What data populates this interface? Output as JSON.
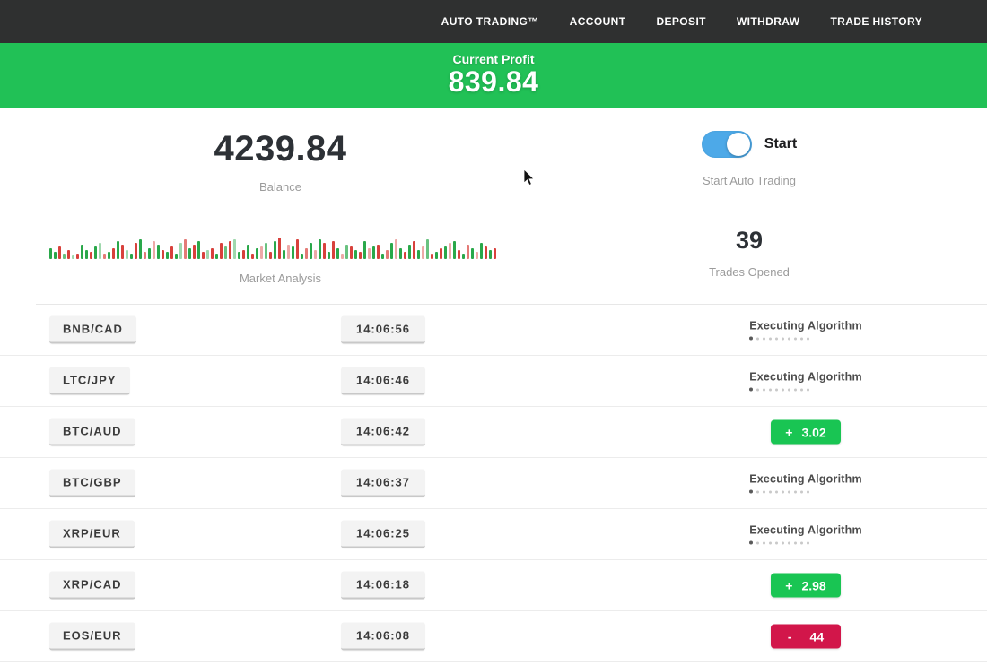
{
  "navbar": {
    "items": [
      "AUTO TRADING™",
      "ACCOUNT",
      "DEPOSIT",
      "WITHDRAW",
      "TRADE HISTORY"
    ]
  },
  "banner": {
    "label": "Current Profit",
    "value": "839.84"
  },
  "account": {
    "balance_value": "4239.84",
    "balance_label": "Balance",
    "toggle_label": "Start",
    "toggle_caption": "Start Auto Trading",
    "toggle_on": true
  },
  "market": {
    "label": "Market Analysis",
    "trades_opened_count": "39",
    "trades_opened_label": "Trades Opened"
  },
  "chart_data": {
    "type": "bar",
    "title": "Market Analysis",
    "note": "decorative candlestick-style strip, green/red bars from baseline",
    "bars": [
      "g12",
      "g8",
      "r14",
      "g6",
      "r10",
      "g4",
      "r6",
      "g16",
      "g10",
      "r8",
      "g14",
      "g18",
      "r6",
      "g8",
      "r12",
      "g20",
      "r16",
      "g10",
      "g6",
      "r18",
      "g22",
      "r8",
      "g12",
      "r20",
      "g16",
      "r10",
      "g8",
      "r14",
      "g6",
      "g18",
      "r22",
      "g12",
      "r16",
      "g20",
      "r8",
      "g10",
      "r12",
      "g6",
      "r18",
      "g14",
      "r20",
      "g22",
      "g8",
      "r10",
      "g16",
      "r6",
      "g12",
      "r14",
      "g18",
      "r8",
      "g20",
      "r24",
      "g10",
      "r16",
      "g14",
      "r22",
      "g6",
      "r12",
      "g18",
      "r10",
      "g22",
      "r18",
      "g8",
      "r20",
      "g12",
      "r6",
      "g16",
      "r14",
      "g10",
      "r8",
      "g20",
      "r12",
      "g14",
      "r16",
      "g6",
      "r10",
      "g18",
      "r22",
      "g12",
      "r8",
      "g16",
      "r20",
      "g10",
      "r14",
      "g22",
      "r6",
      "g8",
      "r12",
      "g14",
      "r18",
      "g20",
      "r10",
      "g6",
      "r16",
      "g12",
      "r8",
      "g18",
      "r14",
      "g10",
      "r12"
    ]
  },
  "trades": [
    {
      "pair": "BNB/CAD",
      "time": "14:06:56",
      "status": "executing",
      "status_label": "Executing Algorithm"
    },
    {
      "pair": "LTC/JPY",
      "time": "14:06:46",
      "status": "executing",
      "status_label": "Executing Algorithm"
    },
    {
      "pair": "BTC/AUD",
      "time": "14:06:42",
      "status": "profit",
      "sign": "+",
      "value": "3.02"
    },
    {
      "pair": "BTC/GBP",
      "time": "14:06:37",
      "status": "executing",
      "status_label": "Executing Algorithm"
    },
    {
      "pair": "XRP/EUR",
      "time": "14:06:25",
      "status": "executing",
      "status_label": "Executing Algorithm"
    },
    {
      "pair": "XRP/CAD",
      "time": "14:06:18",
      "status": "profit",
      "sign": "+",
      "value": "2.98"
    },
    {
      "pair": "EOS/EUR",
      "time": "14:06:08",
      "status": "loss",
      "sign": "-",
      "value": "44"
    }
  ],
  "colors": {
    "navbar-bg": "#2f3030",
    "banner-bg": "#21c156",
    "profit": "#19c553",
    "loss": "#d2164a",
    "toggle": "#4da9e8",
    "bar-green": "#2aa84a",
    "bar-red": "#d8413c"
  }
}
